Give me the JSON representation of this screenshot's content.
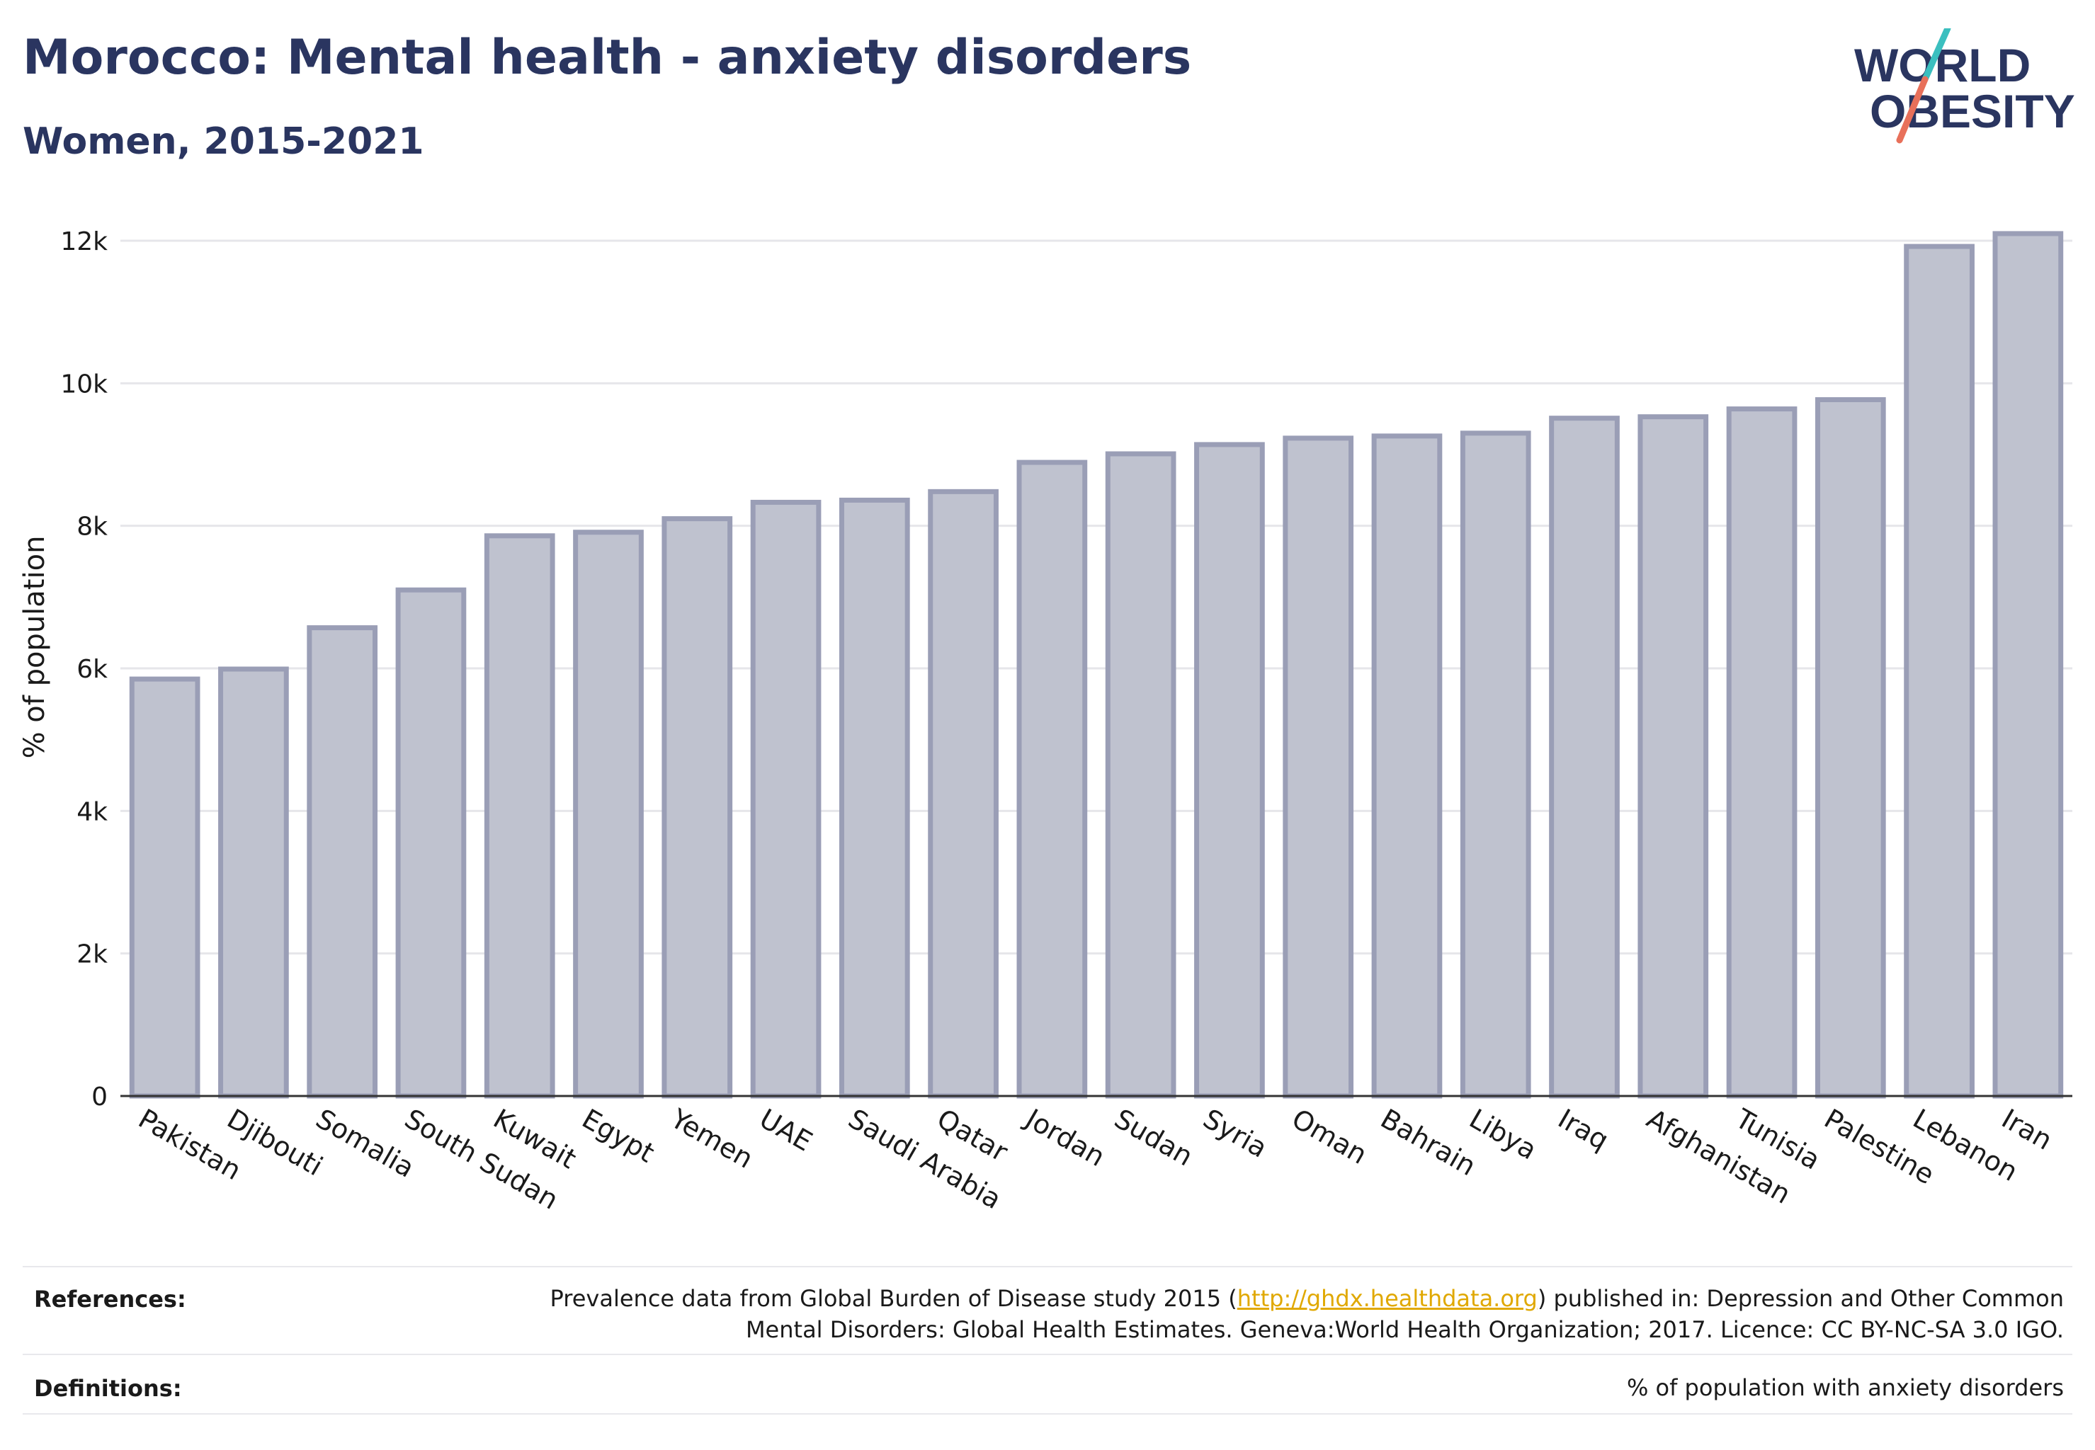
{
  "header": {
    "title": "Morocco: Mental health - anxiety disorders",
    "subtitle": "Women, 2015-2021"
  },
  "logo": {
    "line1": "WORLD",
    "line2": "OBESITY",
    "accent_teal": "#3bbfbf",
    "accent_coral": "#e8705a",
    "text_color": "#2a3560"
  },
  "chart_data": {
    "type": "bar",
    "ylabel": "% of population",
    "ylim": [
      0,
      12000
    ],
    "yticks": [
      {
        "value": 0,
        "label": "0"
      },
      {
        "value": 2000,
        "label": "2k"
      },
      {
        "value": 4000,
        "label": "4k"
      },
      {
        "value": 6000,
        "label": "6k"
      },
      {
        "value": 8000,
        "label": "8k"
      },
      {
        "value": 10000,
        "label": "10k"
      },
      {
        "value": 12000,
        "label": "12k"
      }
    ],
    "grid": true,
    "bar_fill": "#bfc2cf",
    "bar_stroke": "#9a9eb6",
    "categories": [
      "Pakistan",
      "Djibouti",
      "Somalia",
      "South Sudan",
      "Kuwait",
      "Egypt",
      "Yemen",
      "UAE",
      "Saudi Arabia",
      "Qatar",
      "Jordan",
      "Sudan",
      "Syria",
      "Oman",
      "Bahrain",
      "Libya",
      "Iraq",
      "Afghanistan",
      "Tunisia",
      "Palestine",
      "Lebanon",
      "Iran"
    ],
    "values": [
      5850,
      5990,
      6570,
      7100,
      7860,
      7910,
      8100,
      8330,
      8360,
      8480,
      8890,
      9010,
      9140,
      9230,
      9260,
      9300,
      9510,
      9530,
      9640,
      9770,
      11920,
      12100
    ]
  },
  "footer": {
    "references_label": "References:",
    "references_prefix": "Prevalence data from Global Burden of Disease study 2015 (",
    "references_link": "http://ghdx.healthdata.org",
    "references_suffix": ") published in: Depression and Other Common",
    "references_line2": "Mental Disorders: Global Health Estimates. Geneva:World Health Organization; 2017. Licence: CC BY-NC-SA 3.0 IGO.",
    "definitions_label": "Definitions:",
    "definitions_text": "% of population with anxiety disorders"
  }
}
